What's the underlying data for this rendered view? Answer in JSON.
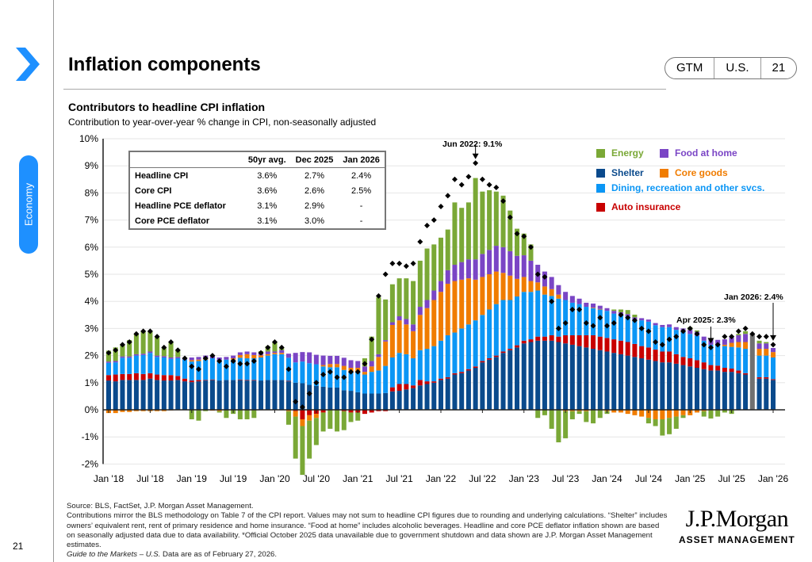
{
  "header": {
    "title": "Inflation components",
    "badge": [
      "GTM",
      "U.S.",
      "21"
    ],
    "section_tab": "Economy",
    "page_number": "21"
  },
  "chart_header": {
    "title": "Contributors to headline CPI inflation",
    "subtitle": "Contribution to year-over-year % change in CPI, non-seasonally adjusted"
  },
  "summary_table": {
    "columns": [
      "",
      "50yr avg.",
      "Dec 2025",
      "Jan 2026"
    ],
    "rows": [
      [
        "Headline CPI",
        "3.6%",
        "2.7%",
        "2.4%"
      ],
      [
        "Core CPI",
        "3.6%",
        "2.6%",
        "2.5%"
      ],
      [
        "Headline PCE deflator",
        "3.1%",
        "2.9%",
        "-"
      ],
      [
        "Core PCE deflator",
        "3.1%",
        "3.0%",
        "-"
      ]
    ]
  },
  "chart_data": {
    "type": "bar",
    "stacked": true,
    "title": "Contributors to headline CPI inflation",
    "ylim": [
      -2,
      10
    ],
    "y_ticks": [
      "-2%",
      "-1%",
      "0%",
      "1%",
      "2%",
      "3%",
      "4%",
      "5%",
      "6%",
      "7%",
      "8%",
      "9%",
      "10%"
    ],
    "x_start": "Jan 2018",
    "x_end": "Jan 2026",
    "x_tick_labels": [
      "Jan '18",
      "Jul '18",
      "Jan '19",
      "Jul '19",
      "Jan '20",
      "Jul '20",
      "Jan '21",
      "Jul '21",
      "Jan '22",
      "Jul '22",
      "Jan '23",
      "Jul '23",
      "Jan '24",
      "Jul '24",
      "Jan '25",
      "Jul '25",
      "Jan '26"
    ],
    "grid": true,
    "legend_position": "top-right",
    "colors": {
      "Energy": "#7aa836",
      "Food at home": "#7a45c5",
      "Shelter": "#0a4a8c",
      "Core goods": "#f07c00",
      "Dining, recreation and other svcs.": "#0b96f5",
      "Auto insurance": "#c80000",
      "estimate": "#707070"
    },
    "series": [
      {
        "name": "Shelter",
        "values": [
          1.08,
          1.05,
          1.1,
          1.1,
          1.1,
          1.1,
          1.15,
          1.1,
          1.08,
          1.08,
          1.1,
          1.05,
          1.02,
          1.05,
          1.08,
          1.1,
          1.08,
          1.1,
          1.1,
          1.1,
          1.08,
          1.08,
          1.08,
          1.1,
          1.1,
          1.1,
          1.05,
          1.0,
          0.98,
          0.92,
          0.88,
          0.85,
          0.82,
          0.82,
          0.72,
          0.7,
          0.65,
          0.6,
          0.6,
          0.6,
          0.62,
          0.68,
          0.7,
          0.75,
          0.8,
          0.9,
          0.95,
          1.0,
          1.1,
          1.15,
          1.3,
          1.35,
          1.45,
          1.55,
          1.75,
          1.85,
          1.95,
          2.1,
          2.2,
          2.3,
          2.45,
          2.5,
          2.55,
          2.55,
          2.55,
          2.5,
          2.45,
          2.4,
          2.35,
          2.3,
          2.25,
          2.2,
          2.15,
          2.1,
          2.05,
          2.0,
          1.95,
          1.9,
          1.85,
          1.8,
          1.75,
          1.75,
          1.7,
          1.65,
          1.6,
          1.55,
          1.5,
          1.45,
          1.45,
          1.4,
          1.4,
          1.35,
          1.3,
          0,
          1.15,
          1.15,
          1.1
        ]
      },
      {
        "name": "Auto insurance",
        "values": [
          0.2,
          0.25,
          0.22,
          0.22,
          0.25,
          0.22,
          0.2,
          0.2,
          0.2,
          0.2,
          0.15,
          0.1,
          0.06,
          0.05,
          0.02,
          0.02,
          0,
          0,
          0,
          0.02,
          0.02,
          0.02,
          0,
          0,
          0,
          0,
          0.02,
          -0.05,
          -0.35,
          -0.2,
          -0.15,
          -0.1,
          0,
          0,
          -0.05,
          -0.1,
          -0.1,
          -0.15,
          -0.1,
          -0.05,
          -0.05,
          0.15,
          0.25,
          0.2,
          0.1,
          0.2,
          0.1,
          0.05,
          0.05,
          0.05,
          0.05,
          0.05,
          0.05,
          0.05,
          0.05,
          0.05,
          0.05,
          0.05,
          0.05,
          0.08,
          0.1,
          0.1,
          0.15,
          0.15,
          0.2,
          0.2,
          0.3,
          0.35,
          0.4,
          0.45,
          0.5,
          0.5,
          0.5,
          0.5,
          0.5,
          0.5,
          0.48,
          0.45,
          0.45,
          0.42,
          0.4,
          0.4,
          0.35,
          0.3,
          0.3,
          0.28,
          0.25,
          0.2,
          0.18,
          0.15,
          0.12,
          0.1,
          0.05,
          0,
          0.05,
          0.05,
          0.03
        ]
      },
      {
        "name": "Dining, recreation and other svcs.",
        "values": [
          0.45,
          0.45,
          0.6,
          0.6,
          0.65,
          0.7,
          0.75,
          0.65,
          0.65,
          0.6,
          0.65,
          0.7,
          0.7,
          0.7,
          0.75,
          0.78,
          0.75,
          0.75,
          0.75,
          0.8,
          0.8,
          0.8,
          0.85,
          0.9,
          0.95,
          0.95,
          0.85,
          0.75,
          0.8,
          0.8,
          0.8,
          0.75,
          0.75,
          0.75,
          0.75,
          0.7,
          0.75,
          0.7,
          0.8,
          0.85,
          1.0,
          1.1,
          1.15,
          1.1,
          1.0,
          1.1,
          1.2,
          1.3,
          1.4,
          1.55,
          1.5,
          1.6,
          1.65,
          1.7,
          1.7,
          1.8,
          1.9,
          1.9,
          1.8,
          1.8,
          1.8,
          1.75,
          1.7,
          1.55,
          1.45,
          1.4,
          1.3,
          1.2,
          1.15,
          1.05,
          1.0,
          1.0,
          1.0,
          0.95,
          0.95,
          0.95,
          0.9,
          0.95,
          0.95,
          0.9,
          0.9,
          0.9,
          0.9,
          0.95,
          0.9,
          0.9,
          0.8,
          0.75,
          0.75,
          0.8,
          0.8,
          0.85,
          0.9,
          0,
          0.8,
          0.8,
          0.8
        ]
      },
      {
        "name": "Core goods",
        "values": [
          -0.12,
          -0.12,
          -0.08,
          -0.08,
          -0.05,
          -0.05,
          -0.05,
          -0.05,
          -0.05,
          -0.02,
          0,
          0,
          0.05,
          0.05,
          0.05,
          -0.03,
          -0.05,
          0,
          0.05,
          0.1,
          0.15,
          0.12,
          0.08,
          0.05,
          0.05,
          0.05,
          -0.05,
          -0.2,
          -0.25,
          -0.2,
          -0.15,
          0.05,
          0.12,
          0.12,
          0.15,
          0.15,
          0.15,
          0.1,
          0.2,
          0.5,
          0.9,
          1.2,
          1.2,
          1.1,
          1.0,
          1.3,
          1.5,
          1.7,
          1.8,
          1.9,
          1.9,
          1.8,
          1.7,
          1.5,
          1.4,
          1.3,
          1.2,
          1.0,
          0.9,
          0.65,
          0.55,
          0.4,
          0.3,
          0.3,
          0.25,
          0.15,
          -0.05,
          -0.05,
          -0.05,
          -0.05,
          0.02,
          0.02,
          -0.05,
          -0.1,
          -0.1,
          -0.15,
          -0.2,
          -0.25,
          -0.3,
          -0.35,
          -0.35,
          -0.3,
          -0.25,
          -0.2,
          -0.2,
          -0.1,
          -0.05,
          -0.02,
          0,
          0.05,
          0.15,
          0.2,
          0.25,
          0,
          0.25,
          0.25,
          0.2
        ]
      },
      {
        "name": "Food at home",
        "values": [
          0.05,
          0.05,
          0.05,
          0.05,
          0.05,
          0.05,
          0.05,
          0.05,
          0.05,
          0.05,
          0.05,
          0.05,
          0.1,
          0.1,
          0.1,
          0.1,
          0.1,
          0.1,
          0.1,
          0.1,
          0.1,
          0.1,
          0.1,
          0.1,
          0.05,
          0.1,
          0.15,
          0.35,
          0.35,
          0.4,
          0.35,
          0.35,
          0.3,
          0.3,
          0.3,
          0.28,
          0.25,
          0.2,
          0.2,
          0.1,
          0.05,
          0.1,
          0.15,
          0.2,
          0.25,
          0.3,
          0.3,
          0.35,
          0.4,
          0.5,
          0.6,
          0.65,
          0.7,
          0.75,
          0.85,
          0.9,
          0.95,
          0.95,
          0.9,
          0.85,
          0.8,
          0.75,
          0.65,
          0.55,
          0.45,
          0.35,
          0.3,
          0.25,
          0.2,
          0.15,
          0.15,
          0.12,
          0.1,
          0.1,
          0.1,
          0.08,
          0.08,
          0.08,
          0.08,
          0.08,
          0.08,
          0.1,
          0.1,
          0.1,
          0.15,
          0.15,
          0.15,
          0.2,
          0.2,
          0.2,
          0.2,
          0.25,
          0.3,
          0,
          0.2,
          0.2,
          0.15
        ]
      },
      {
        "name": "Energy",
        "values": [
          0.4,
          0.5,
          0.45,
          0.6,
          0.75,
          0.85,
          0.75,
          0.7,
          0.3,
          0.55,
          0.25,
          0.0,
          -0.35,
          -0.4,
          -0.05,
          0.0,
          -0.05,
          -0.3,
          -0.15,
          -0.35,
          -0.35,
          -0.3,
          0.05,
          0.2,
          0.35,
          0.1,
          -0.5,
          -1.55,
          -1.8,
          -1.4,
          -1.0,
          -0.7,
          -0.7,
          -0.8,
          -0.7,
          -0.35,
          -0.3,
          0.3,
          0.9,
          2.1,
          1.5,
          1.4,
          1.4,
          1.5,
          1.6,
          1.7,
          1.9,
          1.7,
          1.6,
          1.5,
          2.3,
          2.0,
          2.1,
          3.0,
          2.3,
          2.2,
          2.0,
          1.9,
          1.5,
          1.0,
          0.8,
          0.6,
          -0.3,
          -0.2,
          -0.7,
          -1.2,
          -1.0,
          -0.3,
          -0.1,
          -0.4,
          -0.5,
          -0.3,
          -0.1,
          0.05,
          0.1,
          0.15,
          0.1,
          0,
          -0.2,
          -0.25,
          -0.6,
          -0.6,
          -0.45,
          -0.1,
          0.1,
          0.05,
          -0.2,
          -0.3,
          -0.25,
          -0.1,
          -0.15,
          0.05,
          0.1,
          0,
          0.1,
          0.05,
          0.0
        ]
      },
      {
        "name": "estimate",
        "values": [
          0,
          0,
          0,
          0,
          0,
          0,
          0,
          0,
          0,
          0,
          0,
          0,
          0,
          0,
          0,
          0,
          0,
          0,
          0,
          0,
          0,
          0,
          0,
          0,
          0,
          0,
          0,
          0,
          0,
          0,
          0,
          0,
          0,
          0,
          0,
          0,
          0,
          0,
          0,
          0,
          0,
          0,
          0,
          0,
          0,
          0,
          0,
          0,
          0,
          0,
          0,
          0,
          0,
          0,
          0,
          0,
          0,
          0,
          0,
          0,
          0,
          0,
          0,
          0,
          0,
          0,
          0,
          0,
          0,
          0,
          0,
          0,
          0,
          0,
          0,
          0,
          0,
          0,
          0,
          0,
          0,
          0,
          0,
          0,
          0,
          0,
          0,
          0,
          0,
          0,
          0,
          0,
          0,
          2.8,
          0,
          0,
          0
        ]
      }
    ],
    "headline": [
      2.1,
      2.2,
      2.4,
      2.5,
      2.8,
      2.9,
      2.9,
      2.7,
      2.3,
      2.5,
      2.2,
      1.9,
      1.6,
      1.5,
      1.9,
      2.0,
      1.8,
      1.6,
      1.8,
      1.7,
      1.7,
      1.8,
      2.1,
      2.3,
      2.5,
      2.3,
      1.5,
      0.3,
      0.1,
      0.6,
      1.0,
      1.3,
      1.4,
      1.2,
      1.2,
      1.4,
      1.4,
      1.7,
      2.6,
      4.2,
      5.0,
      5.4,
      5.4,
      5.3,
      5.4,
      6.2,
      6.8,
      7.0,
      7.5,
      7.9,
      8.5,
      8.3,
      8.6,
      9.1,
      8.5,
      8.3,
      8.2,
      7.7,
      7.1,
      6.5,
      6.4,
      6.0,
      5.0,
      4.9,
      4.0,
      3.0,
      3.2,
      3.7,
      3.7,
      3.2,
      3.1,
      3.4,
      3.1,
      3.2,
      3.5,
      3.4,
      3.3,
      3.0,
      2.9,
      2.5,
      2.4,
      2.6,
      2.7,
      2.9,
      3.0,
      2.8,
      2.4,
      2.3,
      2.4,
      2.7,
      2.7,
      2.9,
      3.0,
      2.8,
      2.7,
      2.7,
      2.4
    ],
    "annotations": [
      {
        "text": "Jun 2022: 9.1%",
        "month_index": 53,
        "value": 9.1
      },
      {
        "text": "Apr 2025: 2.3%",
        "month_index": 87,
        "value": 2.3
      },
      {
        "text": "Jan 2026: 2.4%",
        "month_index": 96,
        "value": 2.4
      }
    ]
  },
  "legend": {
    "energy": "Energy",
    "food": "Food at home",
    "shelter": "Shelter",
    "core_goods": "Core goods",
    "dining": "Dining, recreation and other svcs.",
    "auto": "Auto insurance"
  },
  "footer": {
    "source": "Source: BLS, FactSet, J.P. Morgan Asset Management.",
    "note": "Contributions mirror the BLS methodology on Table 7 of the CPI report. Values may not sum to headline CPI figures due to rounding and underlying calculations. “Shelter” includes owners’ equivalent rent, rent of primary residence and home insurance. “Food at home” includes alcoholic beverages. Headline and core PCE deflator inflation shown are based on seasonally adjusted data due to data availability. *Official October 2025 data unavailable due to government shutdown and data shown are J.P. Morgan Asset Management estimates.",
    "guide": "Guide to the Markets – U.S.",
    "asof": " Data are as of February 27, 2026.",
    "logo_main": "J.P.Morgan",
    "logo_sub": "ASSET MANAGEMENT"
  }
}
